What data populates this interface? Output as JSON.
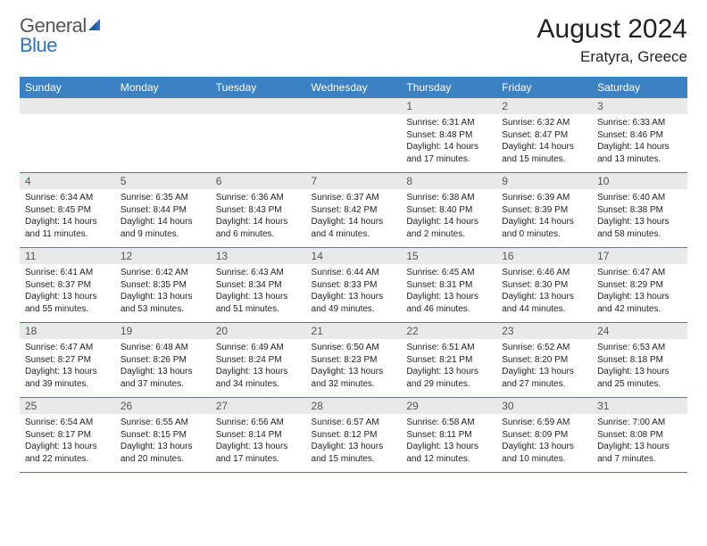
{
  "logo": {
    "part1": "General",
    "part2": "Blue"
  },
  "title": "August 2024",
  "location": "Eratyra, Greece",
  "colors": {
    "header_bg": "#3b82c4",
    "header_text": "#ffffff",
    "daynum_bg": "#e9e9e9",
    "daynum_text": "#555555",
    "border": "#3b82c4",
    "logo_gray": "#555555",
    "logo_blue": "#2d72c0"
  },
  "weekdays": [
    "Sunday",
    "Monday",
    "Tuesday",
    "Wednesday",
    "Thursday",
    "Friday",
    "Saturday"
  ],
  "weeks": [
    [
      null,
      null,
      null,
      null,
      {
        "d": "1",
        "sr": "6:31 AM",
        "ss": "8:48 PM",
        "dl": "14 hours and 17 minutes."
      },
      {
        "d": "2",
        "sr": "6:32 AM",
        "ss": "8:47 PM",
        "dl": "14 hours and 15 minutes."
      },
      {
        "d": "3",
        "sr": "6:33 AM",
        "ss": "8:46 PM",
        "dl": "14 hours and 13 minutes."
      }
    ],
    [
      {
        "d": "4",
        "sr": "6:34 AM",
        "ss": "8:45 PM",
        "dl": "14 hours and 11 minutes."
      },
      {
        "d": "5",
        "sr": "6:35 AM",
        "ss": "8:44 PM",
        "dl": "14 hours and 9 minutes."
      },
      {
        "d": "6",
        "sr": "6:36 AM",
        "ss": "8:43 PM",
        "dl": "14 hours and 6 minutes."
      },
      {
        "d": "7",
        "sr": "6:37 AM",
        "ss": "8:42 PM",
        "dl": "14 hours and 4 minutes."
      },
      {
        "d": "8",
        "sr": "6:38 AM",
        "ss": "8:40 PM",
        "dl": "14 hours and 2 minutes."
      },
      {
        "d": "9",
        "sr": "6:39 AM",
        "ss": "8:39 PM",
        "dl": "14 hours and 0 minutes."
      },
      {
        "d": "10",
        "sr": "6:40 AM",
        "ss": "8:38 PM",
        "dl": "13 hours and 58 minutes."
      }
    ],
    [
      {
        "d": "11",
        "sr": "6:41 AM",
        "ss": "8:37 PM",
        "dl": "13 hours and 55 minutes."
      },
      {
        "d": "12",
        "sr": "6:42 AM",
        "ss": "8:35 PM",
        "dl": "13 hours and 53 minutes."
      },
      {
        "d": "13",
        "sr": "6:43 AM",
        "ss": "8:34 PM",
        "dl": "13 hours and 51 minutes."
      },
      {
        "d": "14",
        "sr": "6:44 AM",
        "ss": "8:33 PM",
        "dl": "13 hours and 49 minutes."
      },
      {
        "d": "15",
        "sr": "6:45 AM",
        "ss": "8:31 PM",
        "dl": "13 hours and 46 minutes."
      },
      {
        "d": "16",
        "sr": "6:46 AM",
        "ss": "8:30 PM",
        "dl": "13 hours and 44 minutes."
      },
      {
        "d": "17",
        "sr": "6:47 AM",
        "ss": "8:29 PM",
        "dl": "13 hours and 42 minutes."
      }
    ],
    [
      {
        "d": "18",
        "sr": "6:47 AM",
        "ss": "8:27 PM",
        "dl": "13 hours and 39 minutes."
      },
      {
        "d": "19",
        "sr": "6:48 AM",
        "ss": "8:26 PM",
        "dl": "13 hours and 37 minutes."
      },
      {
        "d": "20",
        "sr": "6:49 AM",
        "ss": "8:24 PM",
        "dl": "13 hours and 34 minutes."
      },
      {
        "d": "21",
        "sr": "6:50 AM",
        "ss": "8:23 PM",
        "dl": "13 hours and 32 minutes."
      },
      {
        "d": "22",
        "sr": "6:51 AM",
        "ss": "8:21 PM",
        "dl": "13 hours and 29 minutes."
      },
      {
        "d": "23",
        "sr": "6:52 AM",
        "ss": "8:20 PM",
        "dl": "13 hours and 27 minutes."
      },
      {
        "d": "24",
        "sr": "6:53 AM",
        "ss": "8:18 PM",
        "dl": "13 hours and 25 minutes."
      }
    ],
    [
      {
        "d": "25",
        "sr": "6:54 AM",
        "ss": "8:17 PM",
        "dl": "13 hours and 22 minutes."
      },
      {
        "d": "26",
        "sr": "6:55 AM",
        "ss": "8:15 PM",
        "dl": "13 hours and 20 minutes."
      },
      {
        "d": "27",
        "sr": "6:56 AM",
        "ss": "8:14 PM",
        "dl": "13 hours and 17 minutes."
      },
      {
        "d": "28",
        "sr": "6:57 AM",
        "ss": "8:12 PM",
        "dl": "13 hours and 15 minutes."
      },
      {
        "d": "29",
        "sr": "6:58 AM",
        "ss": "8:11 PM",
        "dl": "13 hours and 12 minutes."
      },
      {
        "d": "30",
        "sr": "6:59 AM",
        "ss": "8:09 PM",
        "dl": "13 hours and 10 minutes."
      },
      {
        "d": "31",
        "sr": "7:00 AM",
        "ss": "8:08 PM",
        "dl": "13 hours and 7 minutes."
      }
    ]
  ],
  "labels": {
    "sunrise": "Sunrise: ",
    "sunset": "Sunset: ",
    "daylight": "Daylight: "
  }
}
